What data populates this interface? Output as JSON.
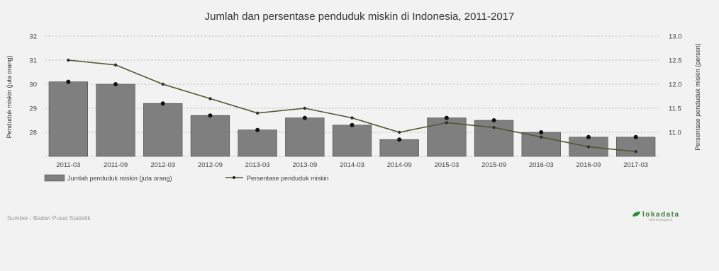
{
  "chart_data": {
    "type": "bar",
    "title": "Jumlah dan persentase penduduk miskin di Indonesia, 2011-2017",
    "categories": [
      "2011-03",
      "2011-09",
      "2012-03",
      "2012-09",
      "2013-03",
      "2013-09",
      "2014-03",
      "2014-09",
      "2015-03",
      "2015-09",
      "2016-03",
      "2016-09",
      "2017-03"
    ],
    "series": [
      {
        "name": "Jumlah penduduk miskin (juta orang)",
        "type": "bar",
        "axis": "left",
        "values": [
          30.1,
          30.0,
          29.2,
          28.7,
          28.1,
          28.6,
          28.3,
          27.7,
          28.6,
          28.5,
          28.0,
          27.8,
          27.8
        ]
      },
      {
        "name": "Persentase penduduk miskin",
        "type": "line",
        "axis": "right",
        "values": [
          12.5,
          12.4,
          12.0,
          11.7,
          11.4,
          11.5,
          11.3,
          11.0,
          11.2,
          11.1,
          10.9,
          10.7,
          10.6
        ]
      }
    ],
    "ylabel": "Penduduk miskin (juta orang)",
    "ylabel_right": "Persentase penduduk miskin (persen)",
    "ylim": [
      27,
      32
    ],
    "yticks": [
      "28",
      "29",
      "30",
      "31",
      "32"
    ],
    "ylim_right": [
      10.5,
      13.0
    ],
    "yticks_right": [
      "11.0",
      "11.5",
      "12.0",
      "12.5",
      "13.0"
    ],
    "grid": true,
    "legend_position": "bottom-left",
    "colors": {
      "bars": "#7f7f7f",
      "bar_border": "#4a4a4a",
      "line": "#555533",
      "markers": "#111111",
      "grid": "#bbbbbb"
    }
  },
  "footer": {
    "source": "Sumber : Badan Pusat Statistik",
    "brand": "lokadata",
    "brand_sub": "Oleh Beritagar.id"
  }
}
